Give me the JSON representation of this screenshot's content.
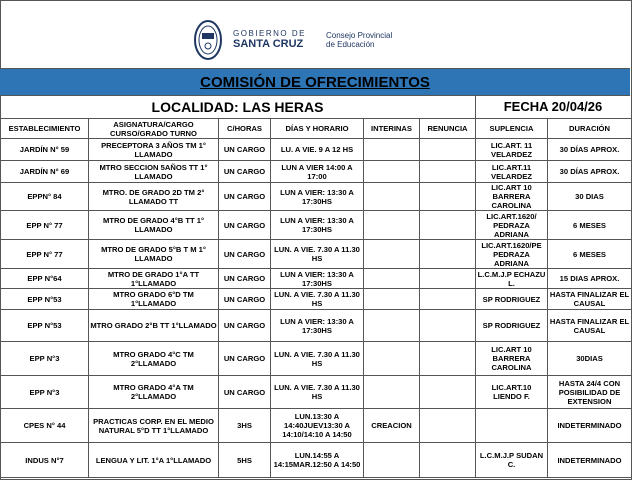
{
  "header": {
    "gov_line1": "GOBIERNO DE",
    "gov_line2": "SANTA CRUZ",
    "council_line1": "Consejo Provincial",
    "council_line2": "de Educación"
  },
  "title": "COMISIÓN DE OFRECIMIENTOS",
  "localidad": "LOCALIDAD: LAS HERAS",
  "fecha": "FECHA  20/04/26",
  "colors": {
    "band": "#2e75b6"
  },
  "columns": [
    "ESTABLECIMIENTO",
    "ASIGNATURA/CARGO CURSO/GRADO TURNO",
    "C/HORAS",
    "DÍAS Y HORARIO",
    "INTERINAS",
    "RENUNCIA",
    "SUPLENCIA",
    "DURACIÓN"
  ],
  "rows": [
    [
      "JARDÍN N° 59",
      "PRECEPTORA 3 AÑOS TM 1° LLAMADO",
      "UN CARGO",
      "LU. A VIE. 9 A 12 HS",
      "",
      "",
      "LIC.ART. 11 VELARDEZ",
      "30 DÍAS APROX."
    ],
    [
      "JARDÍN N° 69",
      "MTRO SECCION 5AÑOS TT 1° LLAMADO",
      "UN CARGO",
      "LUN A VIER 14:00 A 17:00",
      "",
      "",
      "LIC.ART.11 VELARDEZ",
      "30 DÍAS APROX."
    ],
    [
      "EPPN° 84",
      "MTRO. DE GRADO 2D TM 2° LLAMADO TT",
      "UN CARGO",
      "LUN A VIER: 13:30 A 17:30HS",
      "",
      "",
      "LIC.ART 10 BARRERA CAROLINA",
      "30 DIAS"
    ],
    [
      "EPP N° 77",
      "MTRO DE GRADO 4°B TT 1° LLAMADO",
      "UN CARGO",
      "LUN A VIER: 13:30 A 17:30HS",
      "",
      "",
      "LIC.ART.1620/ PEDRAZA ADRIANA",
      "6 MESES"
    ],
    [
      "EPP N° 77",
      "MTRO DE GRADO 5°B T M 1° LLAMADO",
      "UN CARGO",
      "LUN. A VIE. 7.30 A 11.30 HS",
      "",
      "",
      "LIC.ART.1620/PE PEDRAZA ADRIANA",
      "6 MESES"
    ],
    [
      "EPP N°64",
      "MTRO DE GRADO 1°A TT 1°LLAMADO",
      "UN CARGO",
      "LUN A VIER: 13:30 A 17:30HS",
      "",
      "",
      "L.C.M.J.P ECHAZU L.",
      "15 DIAS APROX."
    ],
    [
      "EPP N°53",
      "MTRO GRADO 6°D TM 1°LLAMADO",
      "UN CARGO",
      "LUN. A VIE. 7.30 A 11.30 HS",
      "",
      "",
      "SP RODRIGUEZ",
      "HASTA FINALIZAR EL CAUSAL"
    ],
    [
      "EPP N°53",
      "MTRO GRADO 2°B TT 1°LLAMADO",
      "UN CARGO",
      "LUN A VIER: 13:30 A 17:30HS",
      "",
      "",
      "SP RODRIGUEZ",
      "HASTA FINALIZAR EL CAUSAL"
    ],
    [
      "EPP N°3",
      "MTRO GRADO 4°C TM 2°LLAMADO",
      "UN CARGO",
      "LUN. A VIE. 7.30 A 11.30 HS",
      "",
      "",
      "LIC.ART 10 BARRERA CAROLINA",
      "30DIAS"
    ],
    [
      "EPP N°3",
      "MTRO GRADO 4°A TM 2°LLAMADO",
      "UN CARGO",
      "LUN. A VIE. 7.30 A 11.30 HS",
      "",
      "",
      "LIC.ART.10 LIENDO F.",
      "HASTA 24/4 CON POSIBILIDAD DE EXTENSION"
    ],
    [
      "CPES N° 44",
      "PRACTICAS CORP. EN EL MEDIO NATURAL 5°D TT 1°LLAMADO",
      "3HS",
      "LUN.13:30 A 14:40JUEV13:30 A 14:10/14:10 A 14:50",
      "CREACION",
      "",
      "",
      "INDETERMINADO"
    ],
    [
      "INDUS N°7",
      "LENGUA Y LIT. 1°A 1°LLAMADO",
      "5HS",
      "LUN.14:55 A 14:15MAR.12:50 A 14:50",
      "",
      "",
      "L.C.M.J.P SUDAN C.",
      "INDETERMINADO"
    ]
  ]
}
